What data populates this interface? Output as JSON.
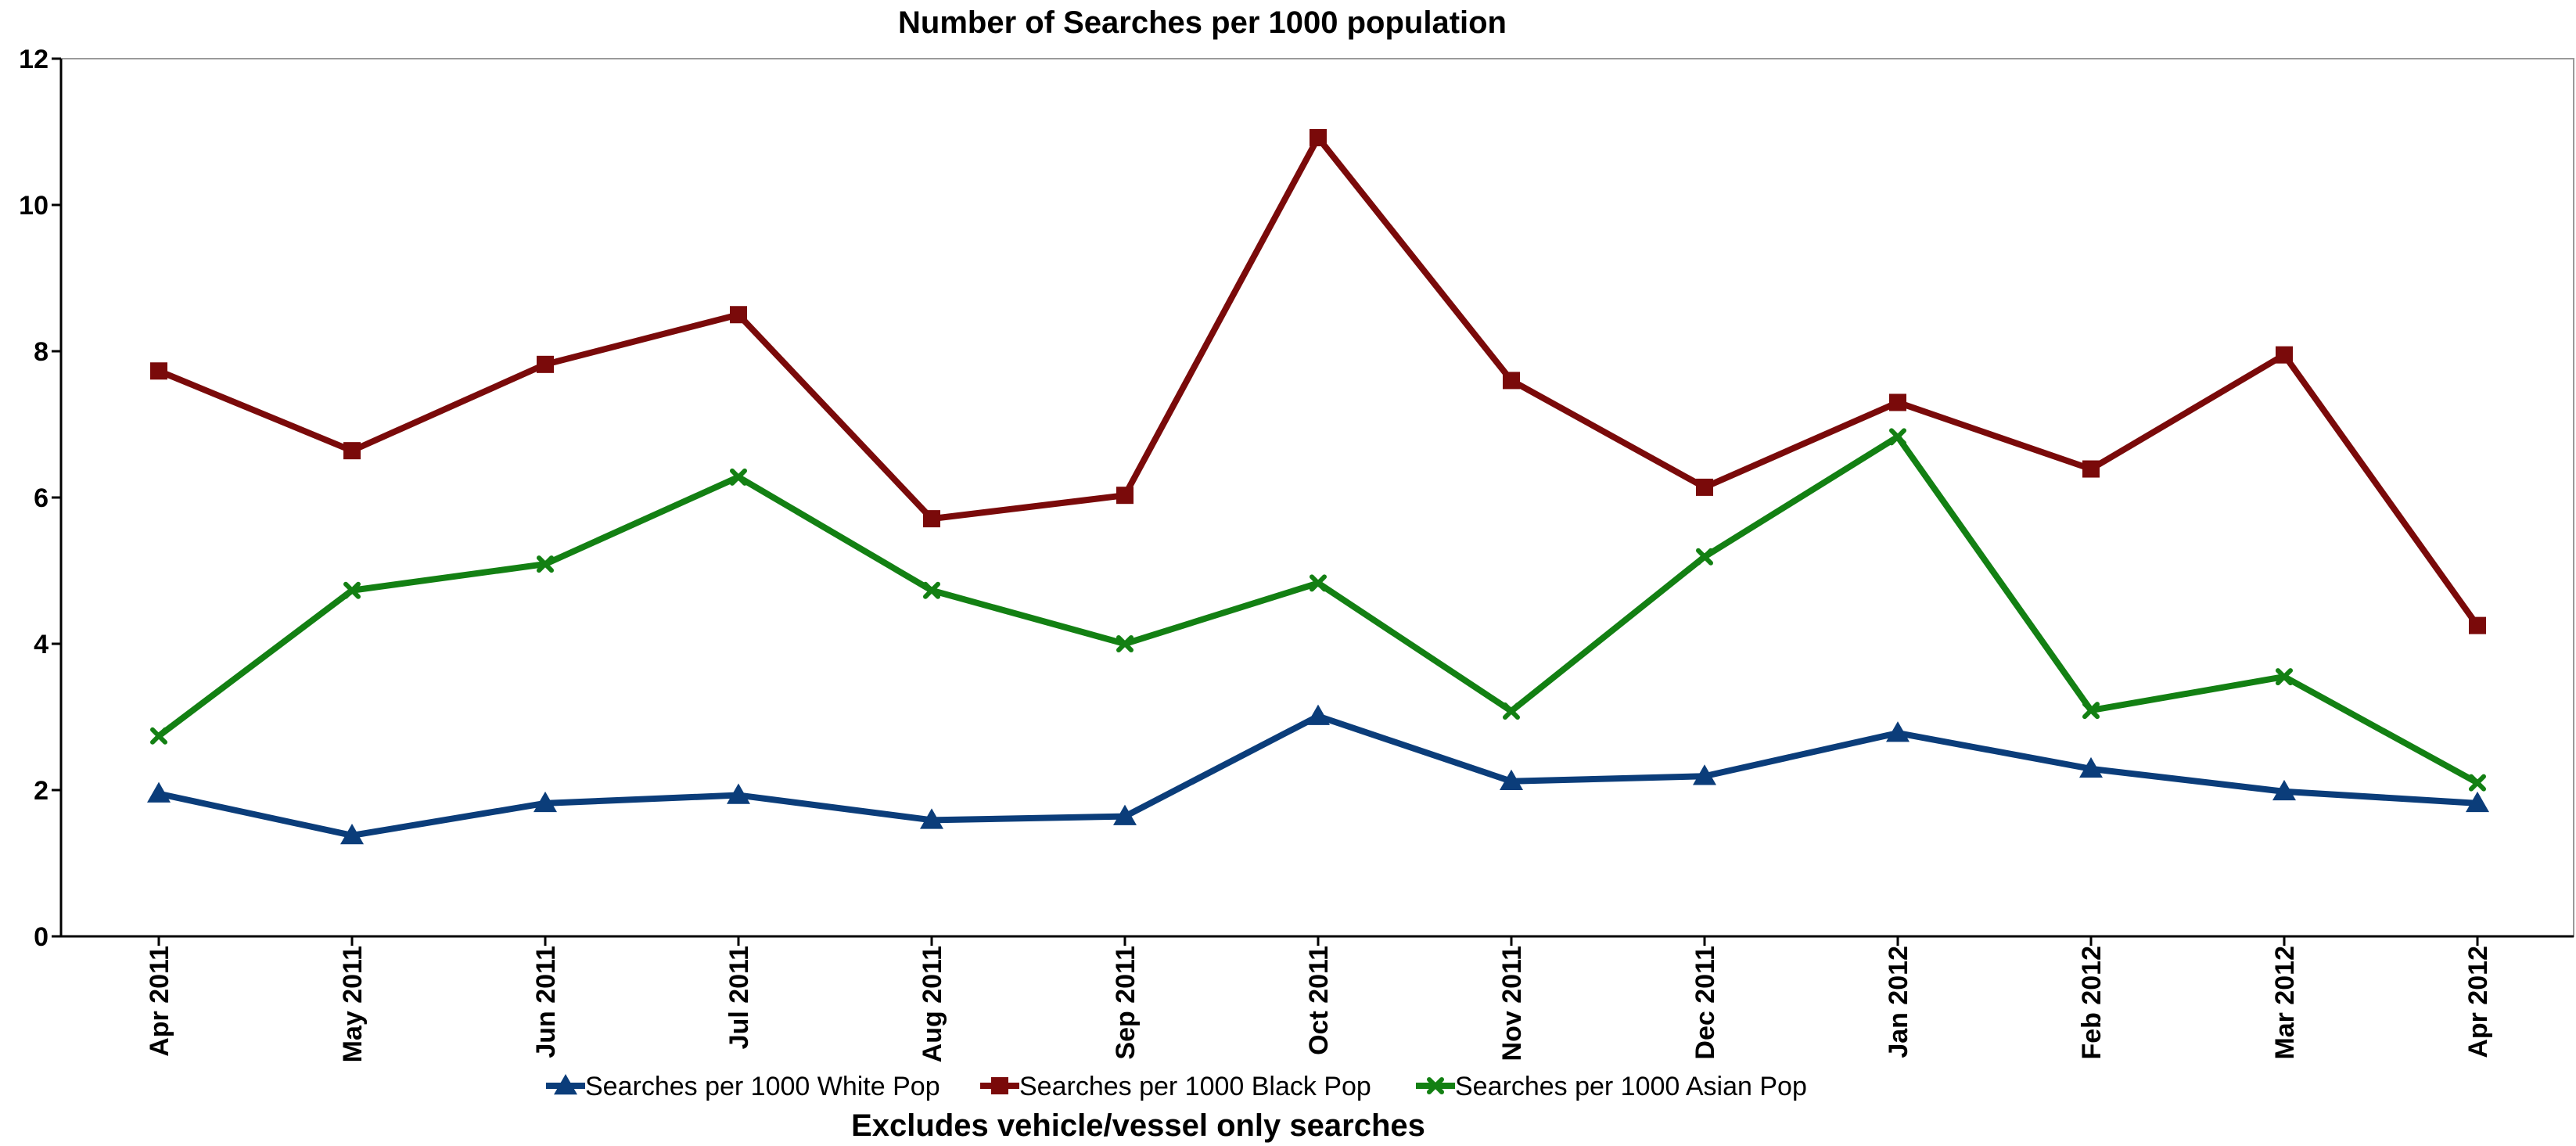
{
  "chart_data": {
    "type": "line",
    "title": "Number of Searches per 1000 population",
    "subtitle": "Excludes vehicle/vessel only searches",
    "xlabel": "",
    "ylabel": "",
    "ylim": [
      0,
      12
    ],
    "yticks": [
      0,
      2,
      4,
      6,
      8,
      10,
      12
    ],
    "grid": false,
    "legend_position": "bottom",
    "categories": [
      "Apr 2011",
      "May 2011",
      "Jun 2011",
      "Jul 2011",
      "Aug 2011",
      "Sep 2011",
      "Oct 2011",
      "Nov 2011",
      "Dec 2011",
      "Jan 2012",
      "Feb 2012",
      "Mar 2012",
      "Apr 2012"
    ],
    "series": [
      {
        "name": "Searches per 1000 White Pop",
        "color": "#0b3d7a",
        "marker": "triangle",
        "values": [
          1.95,
          1.38,
          1.82,
          1.93,
          1.59,
          1.64,
          3.01,
          2.12,
          2.19,
          2.78,
          2.29,
          1.98,
          1.82
        ]
      },
      {
        "name": "Searches per 1000 Black Pop",
        "color": "#7a0a0a",
        "marker": "square",
        "values": [
          7.73,
          6.64,
          7.82,
          8.5,
          5.71,
          6.03,
          10.92,
          7.6,
          6.14,
          7.3,
          6.39,
          7.95,
          4.25
        ]
      },
      {
        "name": "Searches per 1000 Asian Pop",
        "color": "#138013",
        "marker": "x",
        "values": [
          2.74,
          4.73,
          5.09,
          6.28,
          4.73,
          4.0,
          4.83,
          3.08,
          5.19,
          6.83,
          3.09,
          3.55,
          2.1
        ]
      }
    ]
  }
}
